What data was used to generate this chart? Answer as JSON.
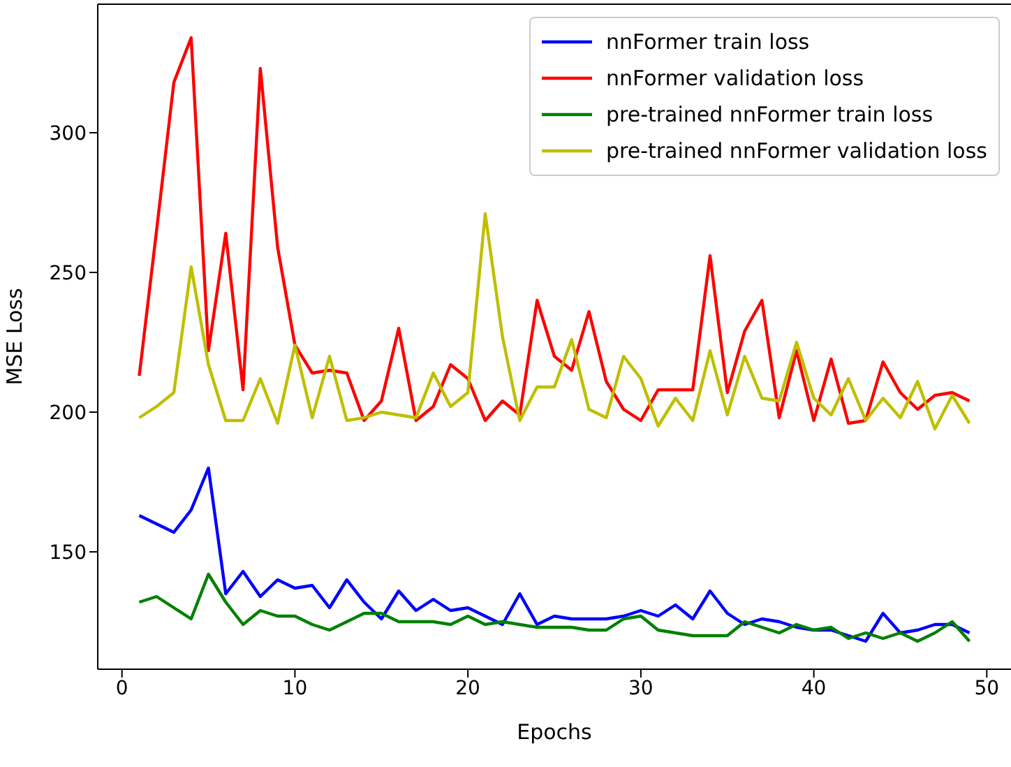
{
  "chart_data": {
    "type": "line",
    "xlabel": "Epochs",
    "ylabel": "MSE Loss",
    "x": [
      1,
      2,
      3,
      4,
      5,
      6,
      7,
      8,
      9,
      10,
      11,
      12,
      13,
      14,
      15,
      16,
      17,
      18,
      19,
      20,
      21,
      22,
      23,
      24,
      25,
      26,
      27,
      28,
      29,
      30,
      31,
      32,
      33,
      34,
      35,
      36,
      37,
      38,
      39,
      40,
      41,
      42,
      43,
      44,
      45,
      46,
      47,
      48,
      49
    ],
    "series": [
      {
        "name": "nnFormer train loss",
        "color": "#0000ff",
        "values": [
          163,
          160,
          157,
          165,
          180,
          135,
          143,
          134,
          140,
          137,
          138,
          130,
          140,
          132,
          126,
          136,
          129,
          133,
          129,
          130,
          127,
          124,
          135,
          124,
          127,
          126,
          126,
          126,
          127,
          129,
          127,
          131,
          126,
          136,
          128,
          124,
          126,
          125,
          123,
          122,
          122,
          120,
          118,
          128,
          121,
          122,
          124,
          124,
          121
        ]
      },
      {
        "name": "nnFormer validation loss",
        "color": "#ff0000",
        "values": [
          213,
          265,
          318,
          334,
          222,
          264,
          208,
          323,
          259,
          224,
          214,
          215,
          214,
          197,
          204,
          230,
          197,
          202,
          217,
          212,
          197,
          204,
          199,
          240,
          220,
          215,
          236,
          211,
          201,
          197,
          208,
          208,
          208,
          256,
          207,
          229,
          240,
          198,
          222,
          197,
          219,
          196,
          197,
          218,
          207,
          201,
          206,
          207,
          204
        ]
      },
      {
        "name": "pre-trained nnFormer train loss",
        "color": "#008000",
        "values": [
          132,
          134,
          130,
          126,
          142,
          132,
          124,
          129,
          127,
          127,
          124,
          122,
          125,
          128,
          128,
          125,
          125,
          125,
          124,
          127,
          124,
          125,
          124,
          123,
          123,
          123,
          122,
          122,
          126,
          127,
          122,
          121,
          120,
          120,
          120,
          125,
          123,
          121,
          124,
          122,
          123,
          119,
          121,
          119,
          121,
          118,
          121,
          125,
          118
        ]
      },
      {
        "name": "pre-trained nnFormer validation loss",
        "color": "#bfbf00",
        "values": [
          198,
          202,
          207,
          252,
          217,
          197,
          197,
          212,
          196,
          224,
          198,
          220,
          197,
          198,
          200,
          199,
          198,
          214,
          202,
          207,
          271,
          227,
          197,
          209,
          209,
          226,
          201,
          198,
          220,
          212,
          195,
          205,
          197,
          222,
          199,
          220,
          205,
          204,
          225,
          205,
          199,
          212,
          197,
          205,
          198,
          211,
          194,
          206,
          196
        ]
      }
    ],
    "xlim": [
      -1.4,
      51.4
    ],
    "xticks": [
      0,
      10,
      20,
      30,
      40,
      50
    ],
    "ylim": [
      108,
      346
    ],
    "yticks": [
      150,
      200,
      250,
      300
    ],
    "grid": false,
    "legend": "top right",
    "marker": "none",
    "line_style": "solid"
  }
}
